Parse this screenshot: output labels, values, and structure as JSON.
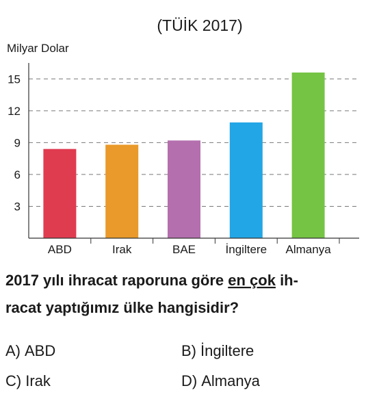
{
  "chart_data": {
    "type": "bar",
    "title": "(TÜİK 2017)",
    "y_label": "Milyar Dolar",
    "categories": [
      "ABD",
      "Irak",
      "BAE",
      "İngiltere",
      "Almanya"
    ],
    "values": [
      8.4,
      8.8,
      9.2,
      10.9,
      15.6
    ],
    "colors": [
      "#e03c50",
      "#e99a2a",
      "#b46fae",
      "#22a6e6",
      "#75c443"
    ],
    "ylim": [
      0,
      16.5
    ],
    "yticks": [
      3,
      6,
      9,
      12,
      15
    ],
    "grid": true
  },
  "question": [
    [
      "2017 yılı ihracat raporuna göre ",
      "en çok",
      " ih-"
    ],
    [
      "racat yaptığımız ülke hangisidir?"
    ]
  ],
  "options": [
    {
      "letter": "A)",
      "text": "ABD"
    },
    {
      "letter": "B)",
      "text": "İngiltere"
    },
    {
      "letter": "C)",
      "text": "Irak"
    },
    {
      "letter": "D)",
      "text": "Almanya"
    }
  ]
}
